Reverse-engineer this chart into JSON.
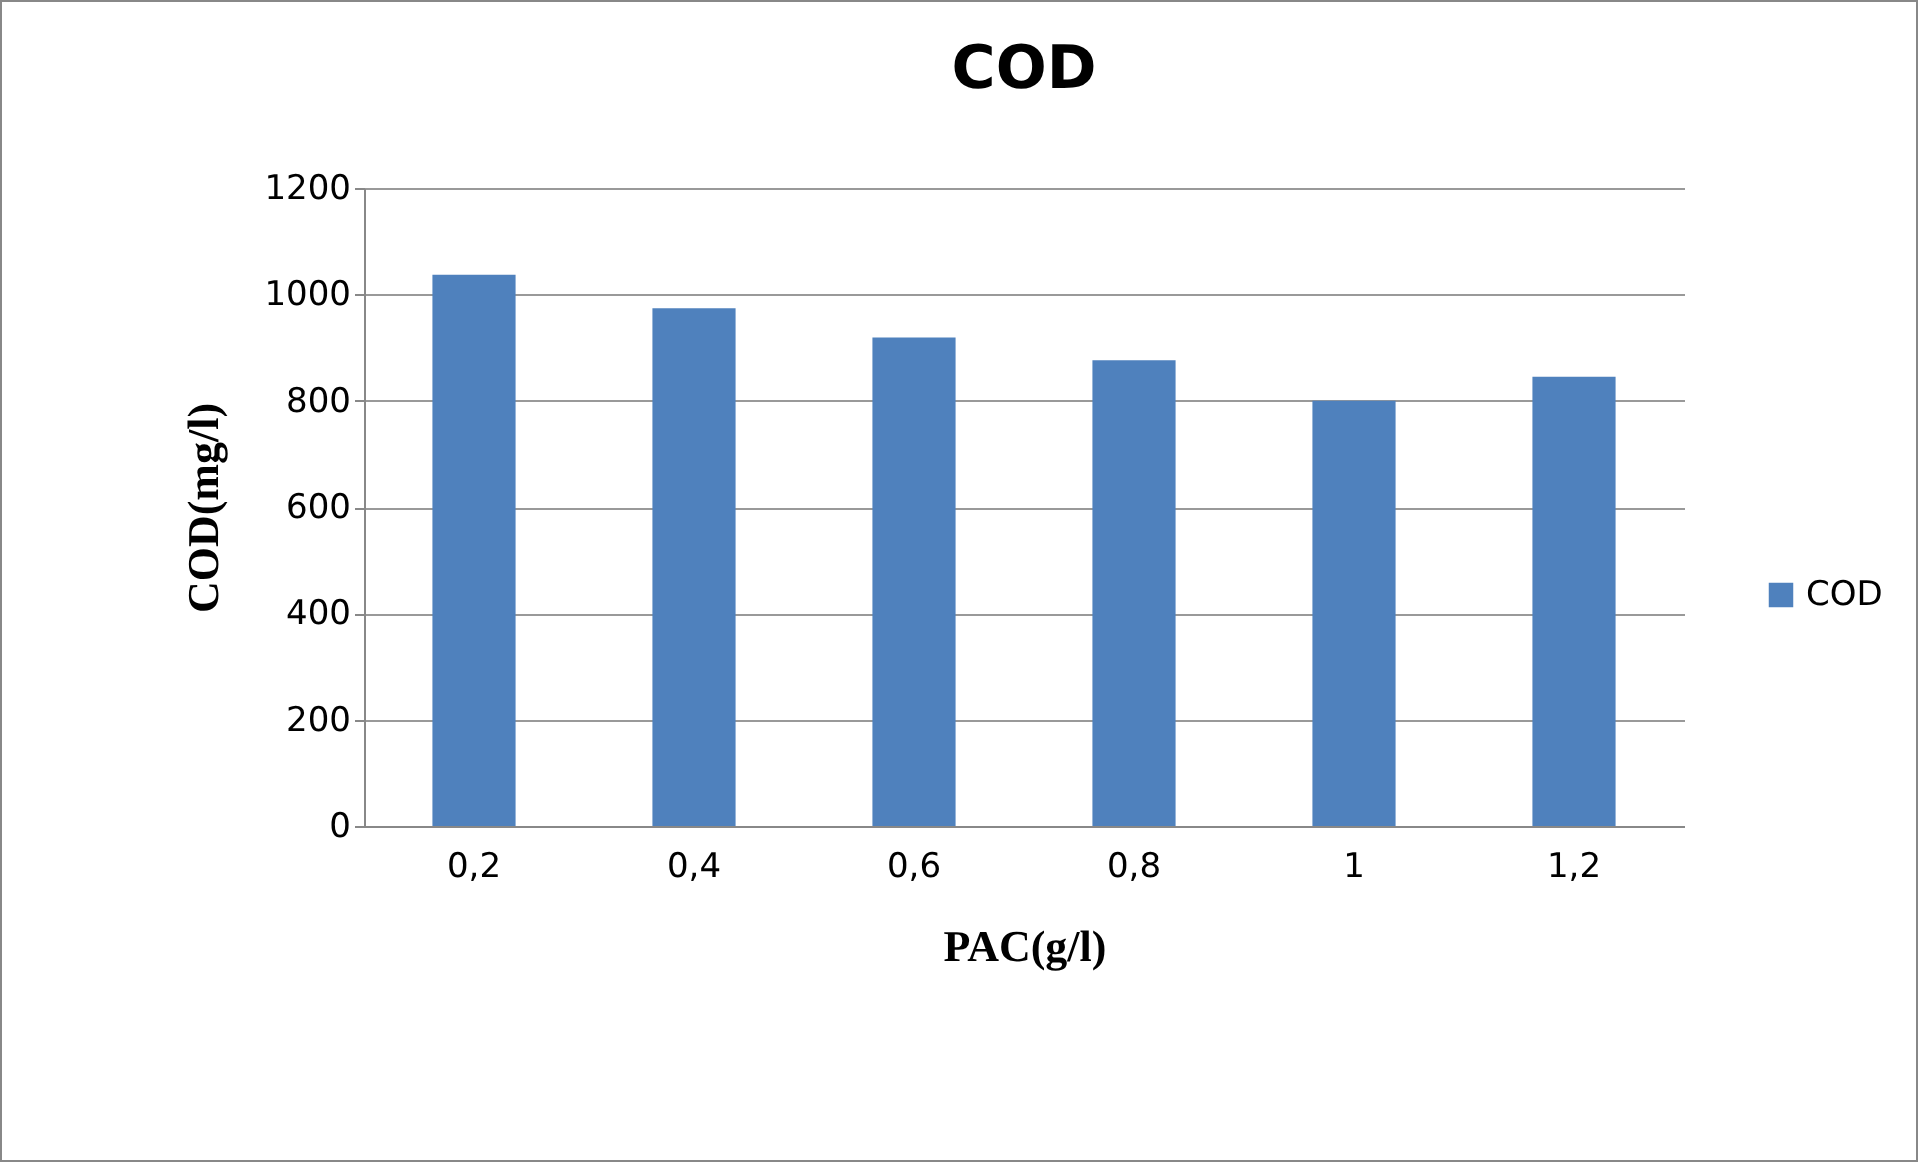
{
  "chart_data": {
    "type": "bar",
    "title": "COD",
    "xlabel": "PAC(g/l)",
    "ylabel": "COD(mg/l)",
    "categories": [
      "0,2",
      "0,4",
      "0,6",
      "0,8",
      "1",
      "1,2"
    ],
    "series": [
      {
        "name": "COD",
        "color": "#4f81bd",
        "values": [
          1037,
          974,
          919,
          876,
          800,
          845
        ]
      }
    ],
    "ylim": [
      0,
      1200
    ],
    "yticks": [
      0,
      200,
      400,
      600,
      800,
      1000,
      1200
    ],
    "grid": "y",
    "legend": "right"
  }
}
